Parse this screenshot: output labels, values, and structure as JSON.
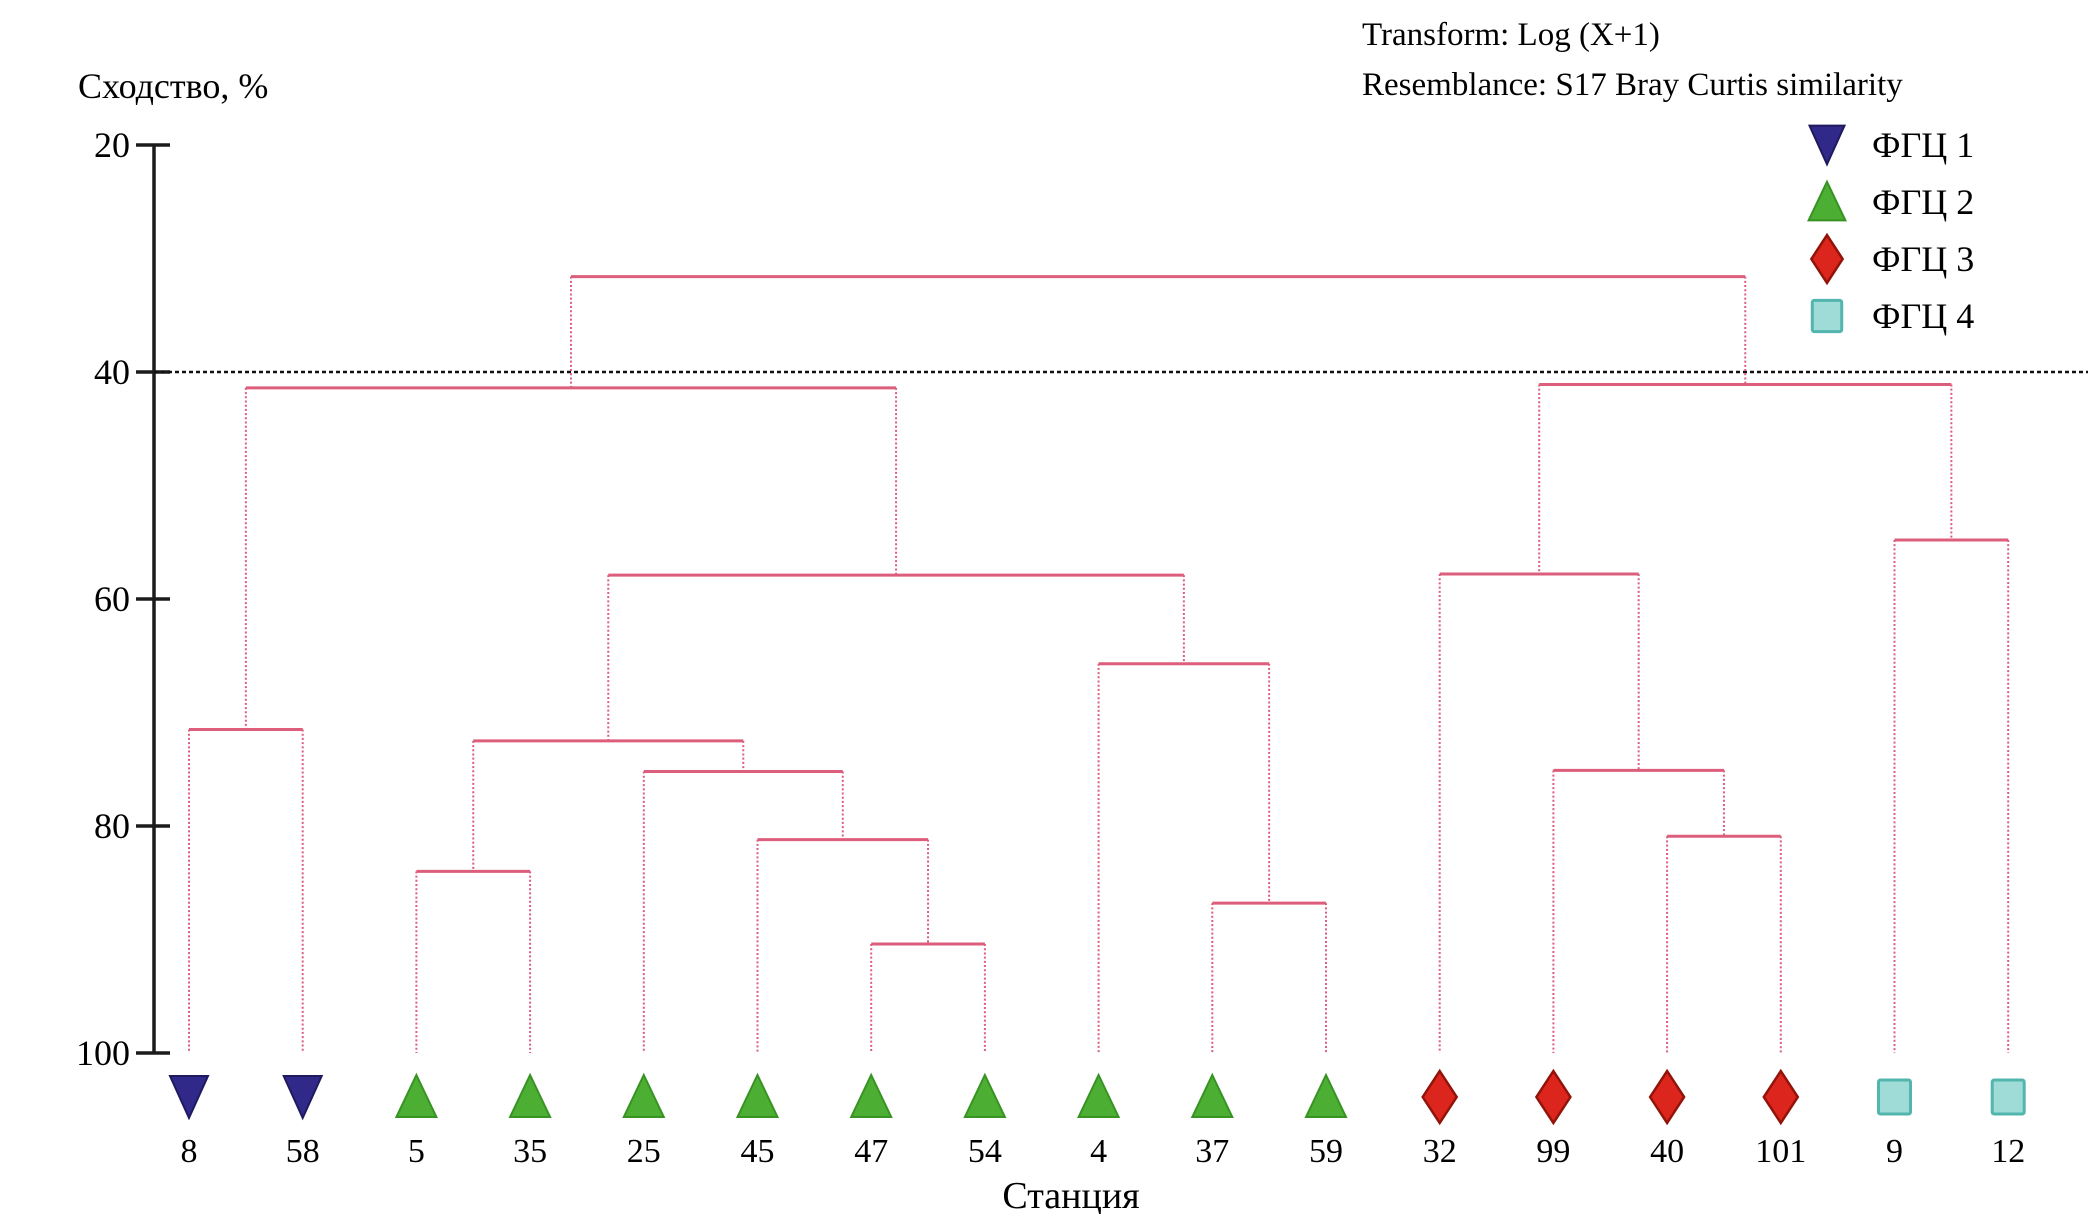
{
  "header": {
    "transform_note": "Transform: Log (X+1)",
    "resemblance_note": "Resemblance: S17 Bray Curtis similarity"
  },
  "chart_data": {
    "type": "dendrogram",
    "ylabel": "Сходство, %",
    "xlabel": "Станция",
    "y_axis": {
      "min": 20,
      "max": 100,
      "ticks": [
        20,
        40,
        60,
        80,
        100
      ],
      "direction": "similarity increases downward"
    },
    "threshold_line": {
      "value": 40,
      "style": "black dashed horizontal"
    },
    "line_color": "#dd5d7c",
    "legend": [
      {
        "label": "ФГЦ 1",
        "marker": "triangle-down",
        "fill": "#31298a",
        "stroke": "#1f1a5e"
      },
      {
        "label": "ФГЦ 2",
        "marker": "triangle-up",
        "fill": "#4cae33",
        "stroke": "#379322"
      },
      {
        "label": "ФГЦ 3",
        "marker": "diamond",
        "fill": "#dc251c",
        "stroke": "#911309"
      },
      {
        "label": "ФГЦ 4",
        "marker": "square",
        "fill": "#a0dcd7",
        "stroke": "#52b5ae"
      }
    ],
    "leaves": [
      {
        "label": "8",
        "group": "ФГЦ 1"
      },
      {
        "label": "58",
        "group": "ФГЦ 1"
      },
      {
        "label": "5",
        "group": "ФГЦ 2"
      },
      {
        "label": "35",
        "group": "ФГЦ 2"
      },
      {
        "label": "25",
        "group": "ФГЦ 2"
      },
      {
        "label": "45",
        "group": "ФГЦ 2"
      },
      {
        "label": "47",
        "group": "ФГЦ 2"
      },
      {
        "label": "54",
        "group": "ФГЦ 2"
      },
      {
        "label": "4",
        "group": "ФГЦ 2"
      },
      {
        "label": "37",
        "group": "ФГЦ 2"
      },
      {
        "label": "59",
        "group": "ФГЦ 2"
      },
      {
        "label": "32",
        "group": "ФГЦ 3"
      },
      {
        "label": "99",
        "group": "ФГЦ 3"
      },
      {
        "label": "40",
        "group": "ФГЦ 3"
      },
      {
        "label": "101",
        "group": "ФГЦ 3"
      },
      {
        "label": "9",
        "group": "ФГЦ 4"
      },
      {
        "label": "12",
        "group": "ФГЦ 4"
      }
    ],
    "tree": {
      "similarity": 31.6,
      "children": [
        {
          "similarity": 41.4,
          "children": [
            {
              "similarity": 71.5,
              "children": [
                "8",
                "58"
              ]
            },
            {
              "similarity": 57.9,
              "children": [
                {
                  "similarity": 72.5,
                  "children": [
                    {
                      "similarity": 84.0,
                      "children": [
                        "5",
                        "35"
                      ]
                    },
                    {
                      "similarity": 75.2,
                      "children": [
                        "25",
                        {
                          "similarity": 81.2,
                          "children": [
                            "45",
                            {
                              "similarity": 90.4,
                              "children": [
                                "47",
                                "54"
                              ]
                            }
                          ]
                        }
                      ]
                    }
                  ]
                },
                {
                  "similarity": 65.7,
                  "children": [
                    "4",
                    {
                      "similarity": 86.8,
                      "children": [
                        "37",
                        "59"
                      ]
                    }
                  ]
                }
              ]
            }
          ]
        },
        {
          "similarity": 41.1,
          "children": [
            {
              "similarity": 57.8,
              "children": [
                "32",
                {
                  "similarity": 75.1,
                  "children": [
                    "99",
                    {
                      "similarity": 80.9,
                      "children": [
                        "40",
                        "101"
                      ]
                    }
                  ]
                }
              ]
            },
            {
              "similarity": 54.8,
              "children": [
                "9",
                "12"
              ]
            }
          ]
        }
      ]
    }
  },
  "colors": {
    "dendrogram_line": "#dd5d7c",
    "axis": "#1b1b1b",
    "threshold": "#111111",
    "background": "#ffffff"
  }
}
